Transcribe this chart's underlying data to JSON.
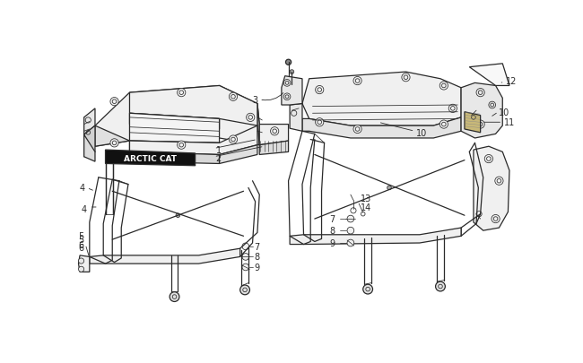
{
  "bg_color": "#ffffff",
  "line_color": "#2a2a2a",
  "figsize": [
    6.5,
    4.06
  ],
  "dpi": 100,
  "arctic_cat_text": "ARCTIC CAT",
  "lw_main": 0.9,
  "lw_thin": 0.55
}
